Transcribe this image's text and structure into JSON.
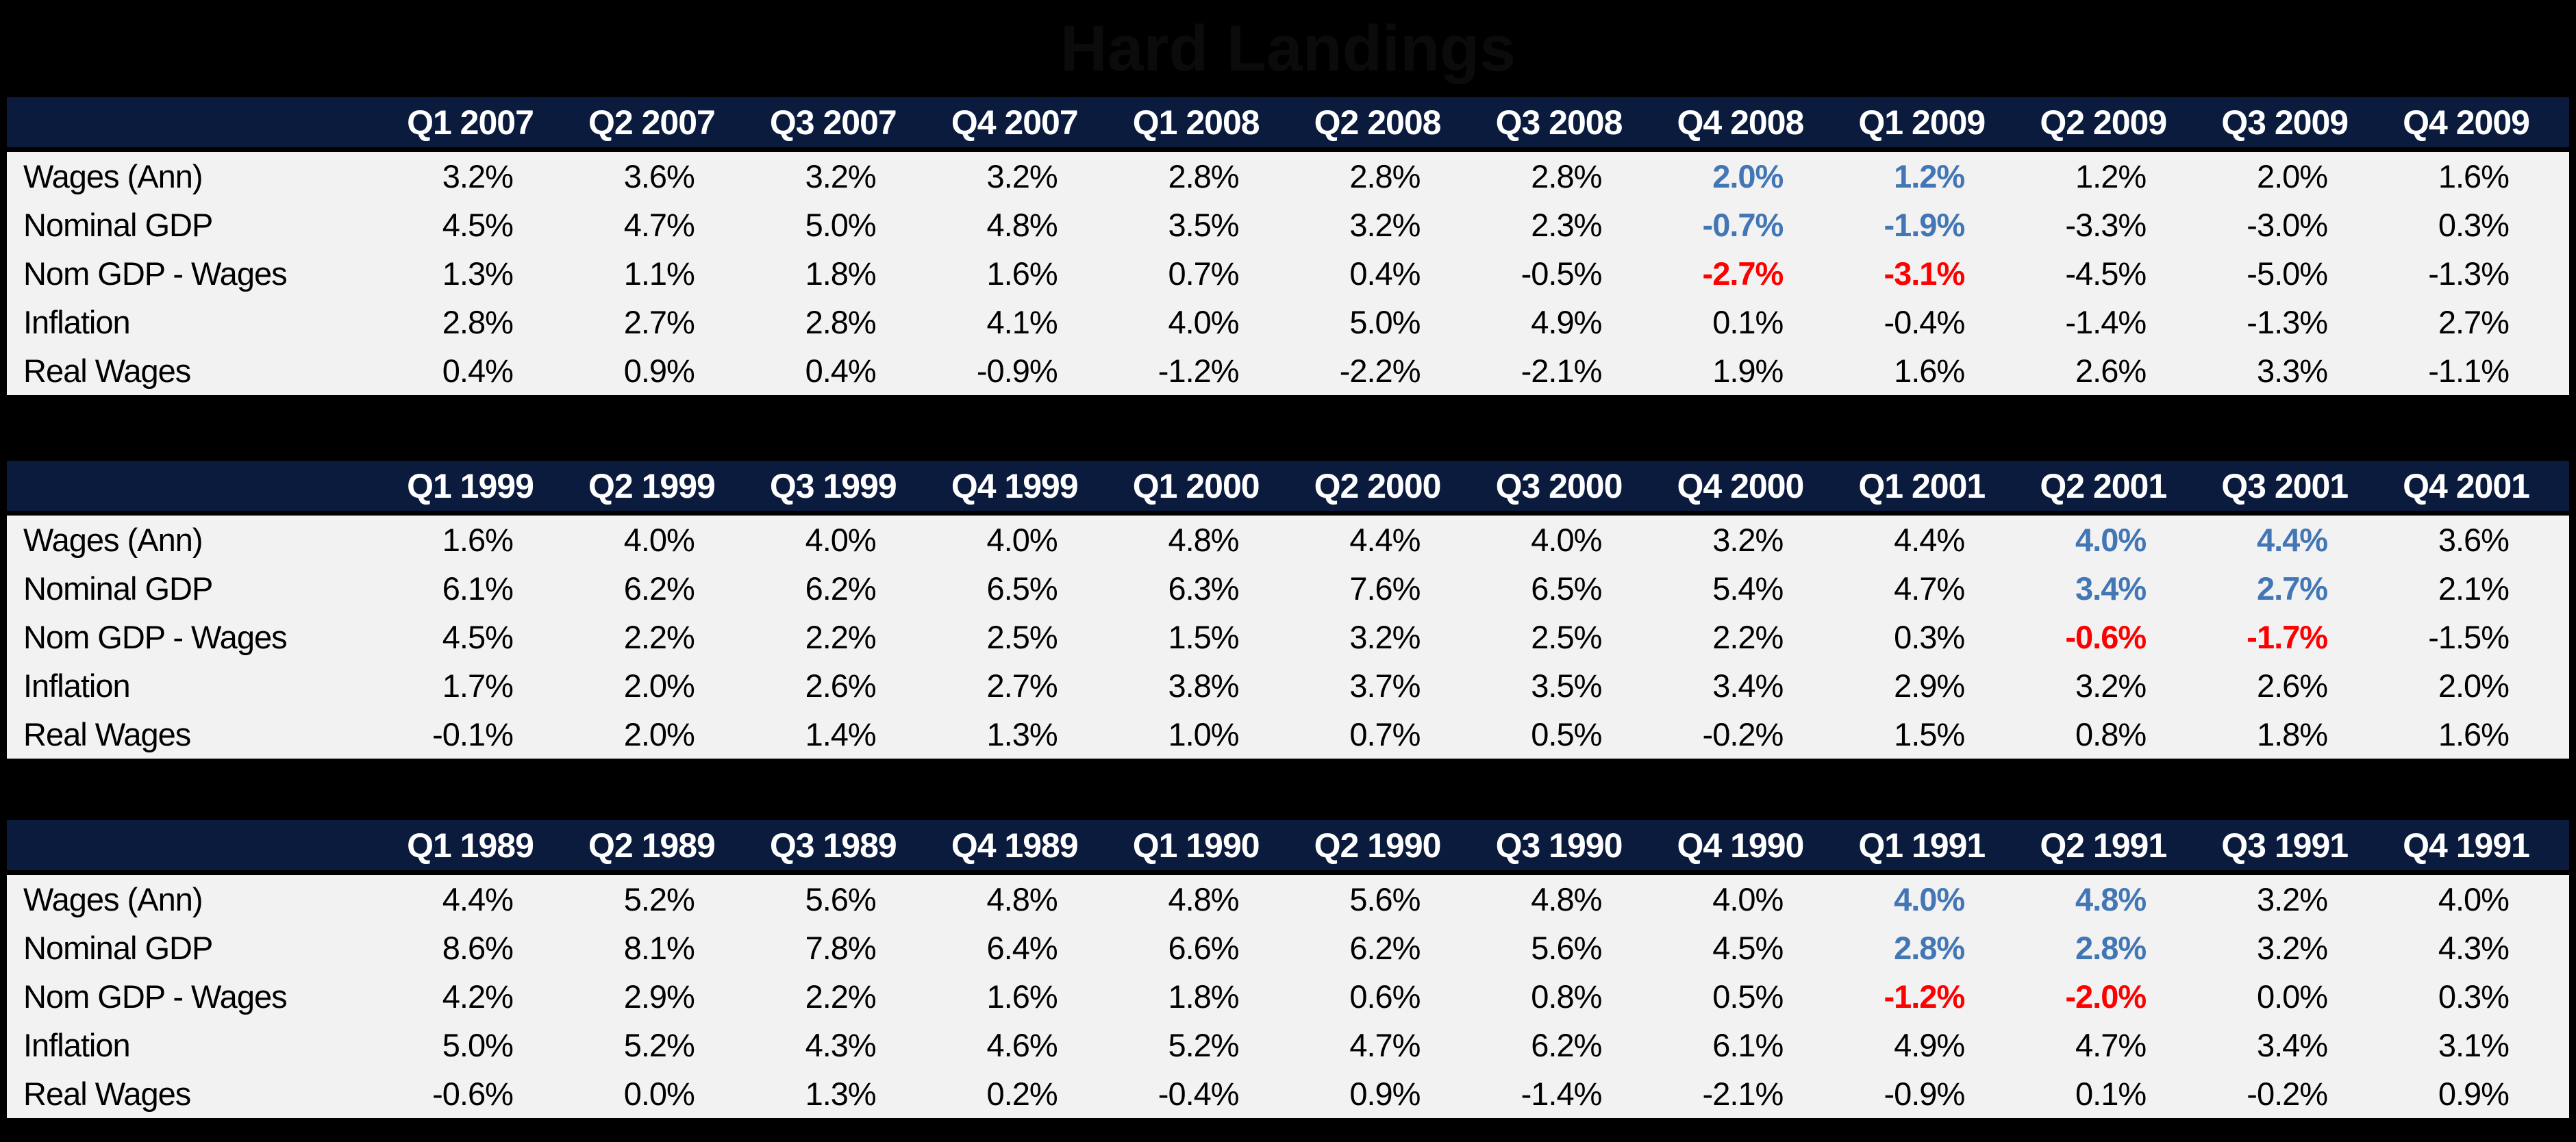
{
  "title": "Hard Landings",
  "colors": {
    "page_bg": "#000000",
    "header_bg": "#0b1b3e",
    "row_bg": "#f2f2f2",
    "header_text": "#ffffff",
    "title_color": "#0b0b0b",
    "highlight_blue": "#4276b5",
    "highlight_red": "#ff0000"
  },
  "row_labels": [
    "Wages (Ann)",
    "Nominal GDP",
    "Nom GDP - Wages",
    "Inflation",
    "Real Wages"
  ],
  "tables": [
    {
      "period": "2007-2009",
      "columns": [
        "Q1 2007",
        "Q2 2007",
        "Q3 2007",
        "Q4 2007",
        "Q1 2008",
        "Q2 2008",
        "Q3 2008",
        "Q4 2008",
        "Q1 2009",
        "Q2 2009",
        "Q3 2009",
        "Q4 2009"
      ],
      "rows": [
        {
          "label": "Wages (Ann)",
          "values": [
            "3.2%",
            "3.6%",
            "3.2%",
            "3.2%",
            "2.8%",
            "2.8%",
            "2.8%",
            "2.0%",
            "1.2%",
            "1.2%",
            "2.0%",
            "1.6%"
          ],
          "styles": [
            "",
            "",
            "",
            "",
            "",
            "",
            "",
            "b",
            "b",
            "",
            "",
            ""
          ]
        },
        {
          "label": "Nominal GDP",
          "values": [
            "4.5%",
            "4.7%",
            "5.0%",
            "4.8%",
            "3.5%",
            "3.2%",
            "2.3%",
            "-0.7%",
            "-1.9%",
            "-3.3%",
            "-3.0%",
            "0.3%"
          ],
          "styles": [
            "",
            "",
            "",
            "",
            "",
            "",
            "",
            "b",
            "b",
            "",
            "",
            ""
          ]
        },
        {
          "label": "Nom GDP - Wages",
          "values": [
            "1.3%",
            "1.1%",
            "1.8%",
            "1.6%",
            "0.7%",
            "0.4%",
            "-0.5%",
            "-2.7%",
            "-3.1%",
            "-4.5%",
            "-5.0%",
            "-1.3%"
          ],
          "styles": [
            "",
            "",
            "",
            "",
            "",
            "",
            "",
            "r",
            "r",
            "",
            "",
            ""
          ]
        },
        {
          "label": "Inflation",
          "values": [
            "2.8%",
            "2.7%",
            "2.8%",
            "4.1%",
            "4.0%",
            "5.0%",
            "4.9%",
            "0.1%",
            "-0.4%",
            "-1.4%",
            "-1.3%",
            "2.7%"
          ],
          "styles": [
            "",
            "",
            "",
            "",
            "",
            "",
            "",
            "",
            "",
            "",
            "",
            ""
          ]
        },
        {
          "label": "Real Wages",
          "values": [
            "0.4%",
            "0.9%",
            "0.4%",
            "-0.9%",
            "-1.2%",
            "-2.2%",
            "-2.1%",
            "1.9%",
            "1.6%",
            "2.6%",
            "3.3%",
            "-1.1%"
          ],
          "styles": [
            "",
            "",
            "",
            "",
            "",
            "",
            "",
            "",
            "",
            "",
            "",
            ""
          ]
        }
      ]
    },
    {
      "period": "1999-2001",
      "columns": [
        "Q1 1999",
        "Q2 1999",
        "Q3 1999",
        "Q4 1999",
        "Q1 2000",
        "Q2 2000",
        "Q3 2000",
        "Q4 2000",
        "Q1 2001",
        "Q2 2001",
        "Q3 2001",
        "Q4 2001"
      ],
      "rows": [
        {
          "label": "Wages (Ann)",
          "values": [
            "1.6%",
            "4.0%",
            "4.0%",
            "4.0%",
            "4.8%",
            "4.4%",
            "4.0%",
            "3.2%",
            "4.4%",
            "4.0%",
            "4.4%",
            "3.6%"
          ],
          "styles": [
            "",
            "",
            "",
            "",
            "",
            "",
            "",
            "",
            "",
            "b",
            "b",
            ""
          ]
        },
        {
          "label": "Nominal GDP",
          "values": [
            "6.1%",
            "6.2%",
            "6.2%",
            "6.5%",
            "6.3%",
            "7.6%",
            "6.5%",
            "5.4%",
            "4.7%",
            "3.4%",
            "2.7%",
            "2.1%"
          ],
          "styles": [
            "",
            "",
            "",
            "",
            "",
            "",
            "",
            "",
            "",
            "b",
            "b",
            ""
          ]
        },
        {
          "label": "Nom GDP - Wages",
          "values": [
            "4.5%",
            "2.2%",
            "2.2%",
            "2.5%",
            "1.5%",
            "3.2%",
            "2.5%",
            "2.2%",
            "0.3%",
            "-0.6%",
            "-1.7%",
            "-1.5%"
          ],
          "styles": [
            "",
            "",
            "",
            "",
            "",
            "",
            "",
            "",
            "",
            "r",
            "r",
            ""
          ]
        },
        {
          "label": "Inflation",
          "values": [
            "1.7%",
            "2.0%",
            "2.6%",
            "2.7%",
            "3.8%",
            "3.7%",
            "3.5%",
            "3.4%",
            "2.9%",
            "3.2%",
            "2.6%",
            "2.0%"
          ],
          "styles": [
            "",
            "",
            "",
            "",
            "",
            "",
            "",
            "",
            "",
            "",
            "",
            ""
          ]
        },
        {
          "label": "Real Wages",
          "values": [
            "-0.1%",
            "2.0%",
            "1.4%",
            "1.3%",
            "1.0%",
            "0.7%",
            "0.5%",
            "-0.2%",
            "1.5%",
            "0.8%",
            "1.8%",
            "1.6%"
          ],
          "styles": [
            "",
            "",
            "",
            "",
            "",
            "",
            "",
            "",
            "",
            "",
            "",
            ""
          ]
        }
      ]
    },
    {
      "period": "1989-1991",
      "columns": [
        "Q1 1989",
        "Q2 1989",
        "Q3 1989",
        "Q4 1989",
        "Q1 1990",
        "Q2 1990",
        "Q3 1990",
        "Q4 1990",
        "Q1 1991",
        "Q2 1991",
        "Q3 1991",
        "Q4 1991"
      ],
      "rows": [
        {
          "label": "Wages (Ann)",
          "values": [
            "4.4%",
            "5.2%",
            "5.6%",
            "4.8%",
            "4.8%",
            "5.6%",
            "4.8%",
            "4.0%",
            "4.0%",
            "4.8%",
            "3.2%",
            "4.0%"
          ],
          "styles": [
            "",
            "",
            "",
            "",
            "",
            "",
            "",
            "",
            "b",
            "b",
            "",
            ""
          ]
        },
        {
          "label": "Nominal GDP",
          "values": [
            "8.6%",
            "8.1%",
            "7.8%",
            "6.4%",
            "6.6%",
            "6.2%",
            "5.6%",
            "4.5%",
            "2.8%",
            "2.8%",
            "3.2%",
            "4.3%"
          ],
          "styles": [
            "",
            "",
            "",
            "",
            "",
            "",
            "",
            "",
            "b",
            "b",
            "",
            ""
          ]
        },
        {
          "label": "Nom GDP - Wages",
          "values": [
            "4.2%",
            "2.9%",
            "2.2%",
            "1.6%",
            "1.8%",
            "0.6%",
            "0.8%",
            "0.5%",
            "-1.2%",
            "-2.0%",
            "0.0%",
            "0.3%"
          ],
          "styles": [
            "",
            "",
            "",
            "",
            "",
            "",
            "",
            "",
            "r",
            "r",
            "",
            ""
          ]
        },
        {
          "label": "Inflation",
          "values": [
            "5.0%",
            "5.2%",
            "4.3%",
            "4.6%",
            "5.2%",
            "4.7%",
            "6.2%",
            "6.1%",
            "4.9%",
            "4.7%",
            "3.4%",
            "3.1%"
          ],
          "styles": [
            "",
            "",
            "",
            "",
            "",
            "",
            "",
            "",
            "",
            "",
            "",
            ""
          ]
        },
        {
          "label": "Real Wages",
          "values": [
            "-0.6%",
            "0.0%",
            "1.3%",
            "0.2%",
            "-0.4%",
            "0.9%",
            "-1.4%",
            "-2.1%",
            "-0.9%",
            "0.1%",
            "-0.2%",
            "0.9%"
          ],
          "styles": [
            "",
            "",
            "",
            "",
            "",
            "",
            "",
            "",
            "",
            "",
            "",
            ""
          ]
        }
      ]
    }
  ]
}
